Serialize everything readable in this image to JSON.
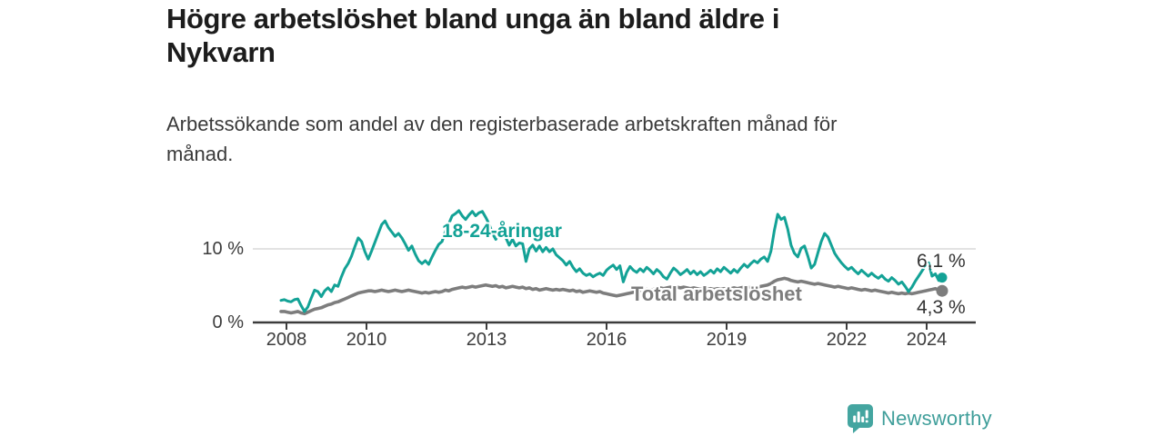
{
  "header": {
    "title_line1": "Högre arbetslöshet bland unga än bland äldre i",
    "title_line2": "Nykvarn",
    "subtitle_line1": "Arbetssökande som andel av den registerbaserade arbetskraften månad för",
    "subtitle_line2": "månad."
  },
  "chart_data": {
    "type": "line",
    "title": "Högre arbetslöshet bland unga än bland äldre i Nykvarn",
    "subtitle": "Arbetssökande som andel av den registerbaserade arbetskraften månad för månad.",
    "unit": "%",
    "frequency": "monthly",
    "x_start": "2008-01",
    "x_end": "2024-06",
    "ylim": [
      0,
      16
    ],
    "grid": "single horizontal gridline at 10 %",
    "y_ticks": [
      {
        "value": 0,
        "label": "0 %"
      },
      {
        "value": 10,
        "label": "10 %"
      }
    ],
    "x_ticks": [
      {
        "year": 2008,
        "label": "2008"
      },
      {
        "year": 2010,
        "label": "2010"
      },
      {
        "year": 2013,
        "label": "2013"
      },
      {
        "year": 2016,
        "label": "2016"
      },
      {
        "year": 2019,
        "label": "2019"
      },
      {
        "year": 2022,
        "label": "2022"
      },
      {
        "year": 2024,
        "label": "2024"
      }
    ],
    "series": [
      {
        "name": "18-24-åringar",
        "color": "#13a296",
        "end_value": 6.1,
        "end_label": "6,1 %",
        "values": [
          3.0,
          3.1,
          2.9,
          2.8,
          3.1,
          3.2,
          2.3,
          1.5,
          2.1,
          3.3,
          4.4,
          4.2,
          3.5,
          4.3,
          4.7,
          4.2,
          5.1,
          4.9,
          6.2,
          7.3,
          8.0,
          9.0,
          10.3,
          11.5,
          11.0,
          9.6,
          8.6,
          9.7,
          10.9,
          12.1,
          13.3,
          13.8,
          12.9,
          12.3,
          11.7,
          12.1,
          11.5,
          10.7,
          9.8,
          10.4,
          9.3,
          8.4,
          8.0,
          8.4,
          7.9,
          8.9,
          9.8,
          10.6,
          11.0,
          12.4,
          13.4,
          14.5,
          14.8,
          15.2,
          14.5,
          14.0,
          14.6,
          15.1,
          14.5,
          14.9,
          15.1,
          14.3,
          13.4,
          12.1,
          11.3,
          12.1,
          12.8,
          11.5,
          10.5,
          11.3,
          10.4,
          10.8,
          10.7,
          8.3,
          10.0,
          10.5,
          9.7,
          10.4,
          9.6,
          10.2,
          9.6,
          10.0,
          9.2,
          8.8,
          8.4,
          7.8,
          8.3,
          7.5,
          6.9,
          7.3,
          6.7,
          6.4,
          6.6,
          6.2,
          6.5,
          6.7,
          6.4,
          7.1,
          7.5,
          7.8,
          7.2,
          7.7,
          5.5,
          6.8,
          7.6,
          7.1,
          6.8,
          7.3,
          6.9,
          7.5,
          7.1,
          6.6,
          7.2,
          6.8,
          6.2,
          5.9,
          6.7,
          7.4,
          7.0,
          6.5,
          6.8,
          7.2,
          6.6,
          7.0,
          6.5,
          6.9,
          6.4,
          6.7,
          7.1,
          6.7,
          7.3,
          6.9,
          7.5,
          7.1,
          6.7,
          7.2,
          6.8,
          7.4,
          7.9,
          7.5,
          8.0,
          8.4,
          8.1,
          8.6,
          8.9,
          8.3,
          9.7,
          12.5,
          14.7,
          14.0,
          14.3,
          12.7,
          10.5,
          9.4,
          8.9,
          10.1,
          10.4,
          9.0,
          7.4,
          7.9,
          9.5,
          11.0,
          12.1,
          11.6,
          10.5,
          9.4,
          8.7,
          8.1,
          7.6,
          7.2,
          7.5,
          7.0,
          6.6,
          7.1,
          6.7,
          6.3,
          6.7,
          6.3,
          6.0,
          6.4,
          5.9,
          5.6,
          6.1,
          5.7,
          5.2,
          5.5,
          4.9,
          4.2,
          4.8,
          5.6,
          6.3,
          7.0,
          7.7,
          8.1,
          6.3,
          6.6,
          5.7,
          6.1
        ]
      },
      {
        "name": "Total arbetslöshet",
        "color": "#7d7d7d",
        "end_value": 4.3,
        "end_label": "4,3 %",
        "values": [
          1.5,
          1.5,
          1.4,
          1.3,
          1.4,
          1.5,
          1.3,
          1.2,
          1.4,
          1.6,
          1.8,
          1.9,
          2.0,
          2.2,
          2.4,
          2.5,
          2.7,
          2.8,
          3.0,
          3.2,
          3.4,
          3.6,
          3.8,
          4.0,
          4.1,
          4.2,
          4.3,
          4.3,
          4.2,
          4.3,
          4.4,
          4.3,
          4.2,
          4.3,
          4.4,
          4.3,
          4.2,
          4.3,
          4.4,
          4.3,
          4.2,
          4.1,
          4.0,
          4.1,
          4.0,
          4.1,
          4.2,
          4.1,
          4.2,
          4.4,
          4.3,
          4.5,
          4.6,
          4.7,
          4.8,
          4.7,
          4.8,
          4.9,
          4.8,
          4.9,
          5.0,
          5.1,
          5.0,
          4.9,
          5.0,
          4.8,
          4.9,
          4.7,
          4.8,
          4.9,
          4.8,
          4.7,
          4.8,
          4.6,
          4.7,
          4.5,
          4.6,
          4.4,
          4.5,
          4.6,
          4.5,
          4.4,
          4.5,
          4.4,
          4.5,
          4.4,
          4.3,
          4.4,
          4.2,
          4.3,
          4.1,
          4.2,
          4.3,
          4.2,
          4.1,
          4.2,
          4.0,
          3.9,
          3.8,
          3.7,
          3.6,
          3.7,
          3.8,
          3.9,
          4.0,
          4.1,
          4.2,
          4.3,
          4.4,
          4.5,
          4.4,
          4.5,
          4.6,
          4.7,
          4.6,
          4.7,
          4.8,
          4.7,
          4.8,
          4.7,
          4.8,
          4.7,
          4.6,
          4.7,
          4.6,
          4.5,
          4.6,
          4.5,
          4.6,
          4.5,
          4.6,
          4.5,
          4.6,
          4.5,
          4.6,
          4.7,
          4.6,
          4.7,
          4.8,
          4.7,
          4.8,
          4.9,
          4.8,
          4.9,
          5.0,
          5.1,
          5.3,
          5.6,
          5.8,
          5.9,
          6.0,
          5.9,
          5.7,
          5.6,
          5.5,
          5.6,
          5.5,
          5.4,
          5.3,
          5.2,
          5.3,
          5.2,
          5.1,
          5.0,
          4.9,
          4.8,
          4.9,
          4.8,
          4.7,
          4.6,
          4.7,
          4.6,
          4.5,
          4.4,
          4.5,
          4.4,
          4.3,
          4.4,
          4.3,
          4.2,
          4.1,
          4.0,
          4.1,
          4.0,
          3.9,
          4.0,
          3.9,
          4.0,
          3.9,
          4.0,
          4.1,
          4.2,
          4.3,
          4.4,
          4.5,
          4.6,
          4.4,
          4.3
        ]
      }
    ],
    "legend_position": "labels drawn on chart next to lines"
  },
  "branding": {
    "logo_text": "Newsworthy",
    "logo_icon": "newsworthy-chart-bubble-icon",
    "accent_color": "#3f9e9a"
  },
  "colors": {
    "youth_line": "#13a296",
    "total_line": "#7d7d7d",
    "axis": "#3c3c3c",
    "gridline": "#d9d9d9",
    "title_text": "#1c1c1c"
  }
}
